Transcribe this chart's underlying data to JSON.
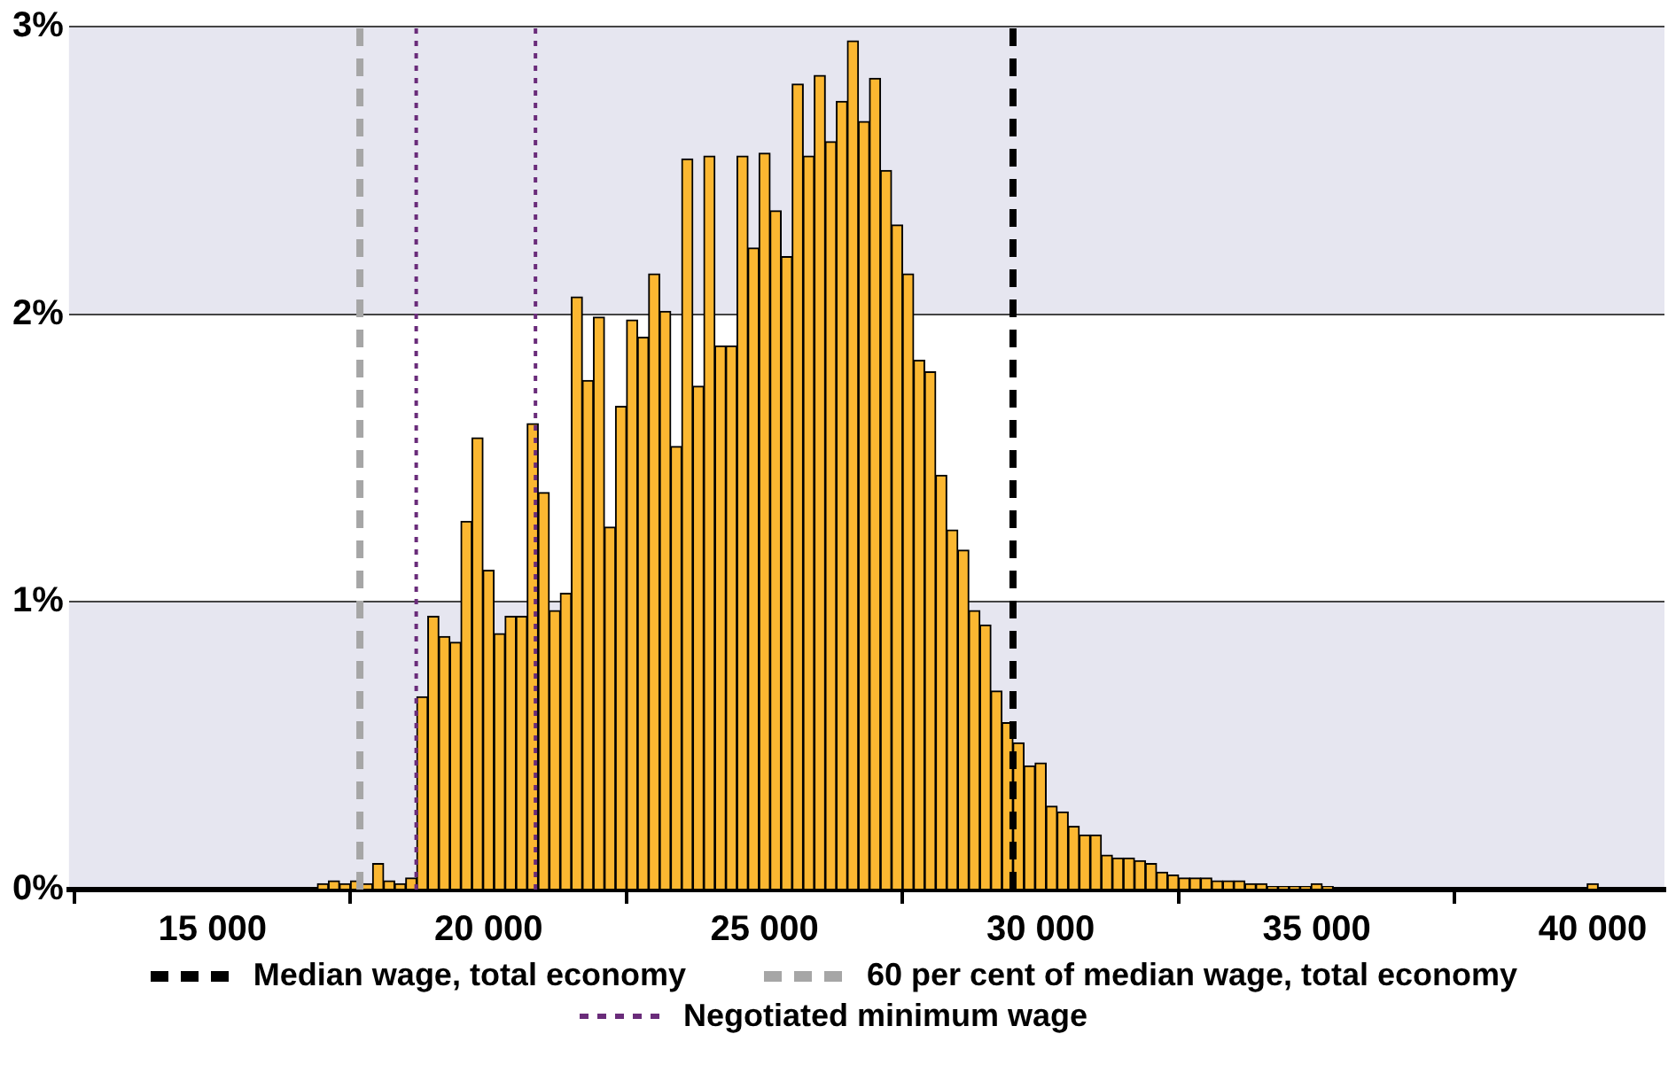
{
  "chart_data": {
    "type": "histogram",
    "bins": [
      16900,
      17100,
      17300,
      17500,
      17700,
      17900,
      18100,
      18300,
      18500,
      18700,
      18900,
      19100,
      19300,
      19500,
      19700,
      19900,
      20100,
      20300,
      20500,
      20700,
      20900,
      21100,
      21300,
      21500,
      21700,
      21900,
      22100,
      22300,
      22500,
      22700,
      22900,
      23100,
      23300,
      23500,
      23700,
      23900,
      24100,
      24300,
      24500,
      24700,
      24900,
      25100,
      25300,
      25500,
      25700,
      25900,
      26100,
      26300,
      26500,
      26700,
      26900,
      27100,
      27300,
      27500,
      27700,
      27900,
      28100,
      28300,
      28500,
      28700,
      28900,
      29100,
      29300,
      29500,
      29700,
      29900,
      30100,
      30300,
      30500,
      30700,
      30900,
      31100,
      31300,
      31500,
      31700,
      31900,
      32100,
      32300,
      32500,
      32700,
      32900,
      33100,
      33300,
      33500,
      33700,
      33900,
      34100,
      34300,
      34500,
      34700,
      34900,
      35100,
      35300,
      35500,
      35700,
      35900,
      36100,
      36300,
      36500,
      36700,
      36900,
      37100,
      37300,
      37500,
      37700,
      37900,
      38100,
      38300,
      38500,
      38700,
      38900,
      39100,
      39300,
      39500,
      39700,
      39900,
      40100
    ],
    "values": [
      0.02,
      0.03,
      0.02,
      0.03,
      0.02,
      0.09,
      0.03,
      0.02,
      0.04,
      0.67,
      0.95,
      0.88,
      0.86,
      1.28,
      1.57,
      1.11,
      0.89,
      0.95,
      0.95,
      1.62,
      1.38,
      0.97,
      1.03,
      2.06,
      1.77,
      1.99,
      1.26,
      1.68,
      1.98,
      1.92,
      2.14,
      2.01,
      1.54,
      2.54,
      1.75,
      2.55,
      1.89,
      1.89,
      2.55,
      2.23,
      2.56,
      2.36,
      2.2,
      2.8,
      2.55,
      2.83,
      2.6,
      2.74,
      2.95,
      2.67,
      2.82,
      2.5,
      2.31,
      2.14,
      1.84,
      1.8,
      1.44,
      1.25,
      1.18,
      0.97,
      0.92,
      0.69,
      0.58,
      0.51,
      0.43,
      0.44,
      0.29,
      0.27,
      0.22,
      0.19,
      0.19,
      0.12,
      0.11,
      0.11,
      0.1,
      0.09,
      0.06,
      0.05,
      0.04,
      0.04,
      0.04,
      0.03,
      0.03,
      0.03,
      0.02,
      0.02,
      0.01,
      0.01,
      0.01,
      0.01,
      0.02,
      0.01,
      0,
      0,
      0,
      0,
      0,
      0,
      0,
      0,
      0,
      0,
      0,
      0,
      0,
      0,
      0,
      0,
      0,
      0,
      0,
      0,
      0,
      0,
      0,
      0.02
    ],
    "color": "#fbb731",
    "xlim": [
      12400,
      41300
    ],
    "xticks": [
      {
        "value": 15000,
        "label": "15 000"
      },
      {
        "value": 20000,
        "label": "20 000"
      },
      {
        "value": 25000,
        "label": "25 000"
      },
      {
        "value": 30000,
        "label": "30 000"
      },
      {
        "value": 35000,
        "label": "35 000"
      },
      {
        "value": 40000,
        "label": "40 000"
      }
    ],
    "ylim": [
      0,
      3
    ],
    "yticks": [
      {
        "value": 0,
        "label": "0%"
      },
      {
        "value": 1,
        "label": "1%"
      },
      {
        "value": 2,
        "label": "2%"
      },
      {
        "value": 3,
        "label": "3%"
      }
    ],
    "grid": "y",
    "bands": [
      {
        "axis": "y",
        "from": 0,
        "to": 1,
        "color": "#e6e6f0"
      },
      {
        "axis": "y",
        "from": 2,
        "to": 3,
        "color": "#e6e6f0"
      }
    ],
    "ref_lines": [
      {
        "axis": "x",
        "value": 29500,
        "label": "Median wage, total economy",
        "color": "#000000",
        "line_style": "dashed"
      },
      {
        "axis": "x",
        "value": 17670,
        "label": "60 per cent of median wage, total economy",
        "color": "#a6a6a6",
        "line_style": "dashed"
      },
      {
        "axis": "x",
        "value": 18690,
        "label": "Negotiated minimum wage",
        "color": "#6a2c7a",
        "line_style": "dotted"
      },
      {
        "axis": "x",
        "value": 20850,
        "color": "#6a2c7a",
        "line_style": "dotted"
      }
    ],
    "legend": "bottom"
  }
}
